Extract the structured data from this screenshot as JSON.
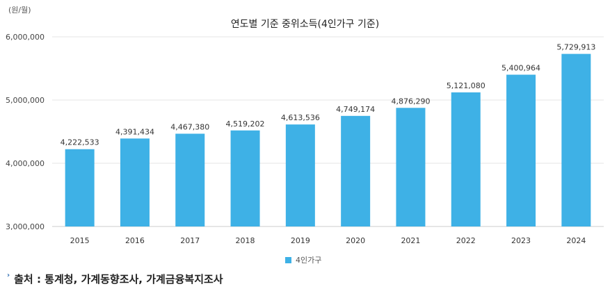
{
  "chart_data": {
    "type": "bar",
    "title": "연도별 기준 중위소득(4인가구 기준)",
    "unit_label": "(원/월)",
    "categories": [
      "2015",
      "2016",
      "2017",
      "2018",
      "2019",
      "2020",
      "2021",
      "2022",
      "2023",
      "2024"
    ],
    "series": [
      {
        "name": "4인가구",
        "color": "#3EB1E6",
        "values": [
          4222533,
          4391434,
          4467380,
          4519202,
          4613536,
          4749174,
          4876290,
          5121080,
          5400964,
          5729913
        ],
        "labels": [
          "4,222,533",
          "4,391,434",
          "4,467,380",
          "4,519,202",
          "4,613,536",
          "4,749,174",
          "4,876,290",
          "5,121,080",
          "5,400,964",
          "5,729,913"
        ]
      }
    ],
    "ylim": [
      3000000,
      6000000
    ],
    "yticks": [
      3000000,
      4000000,
      5000000,
      6000000
    ],
    "ytick_labels": [
      "3,000,000",
      "4,000,000",
      "5,000,000",
      "6,000,000"
    ],
    "grid": true,
    "legend_position": "bottom"
  },
  "source": {
    "text": "출처 : 통계청, 가계동향조사, 가계금융복지조사",
    "marker": "›"
  }
}
